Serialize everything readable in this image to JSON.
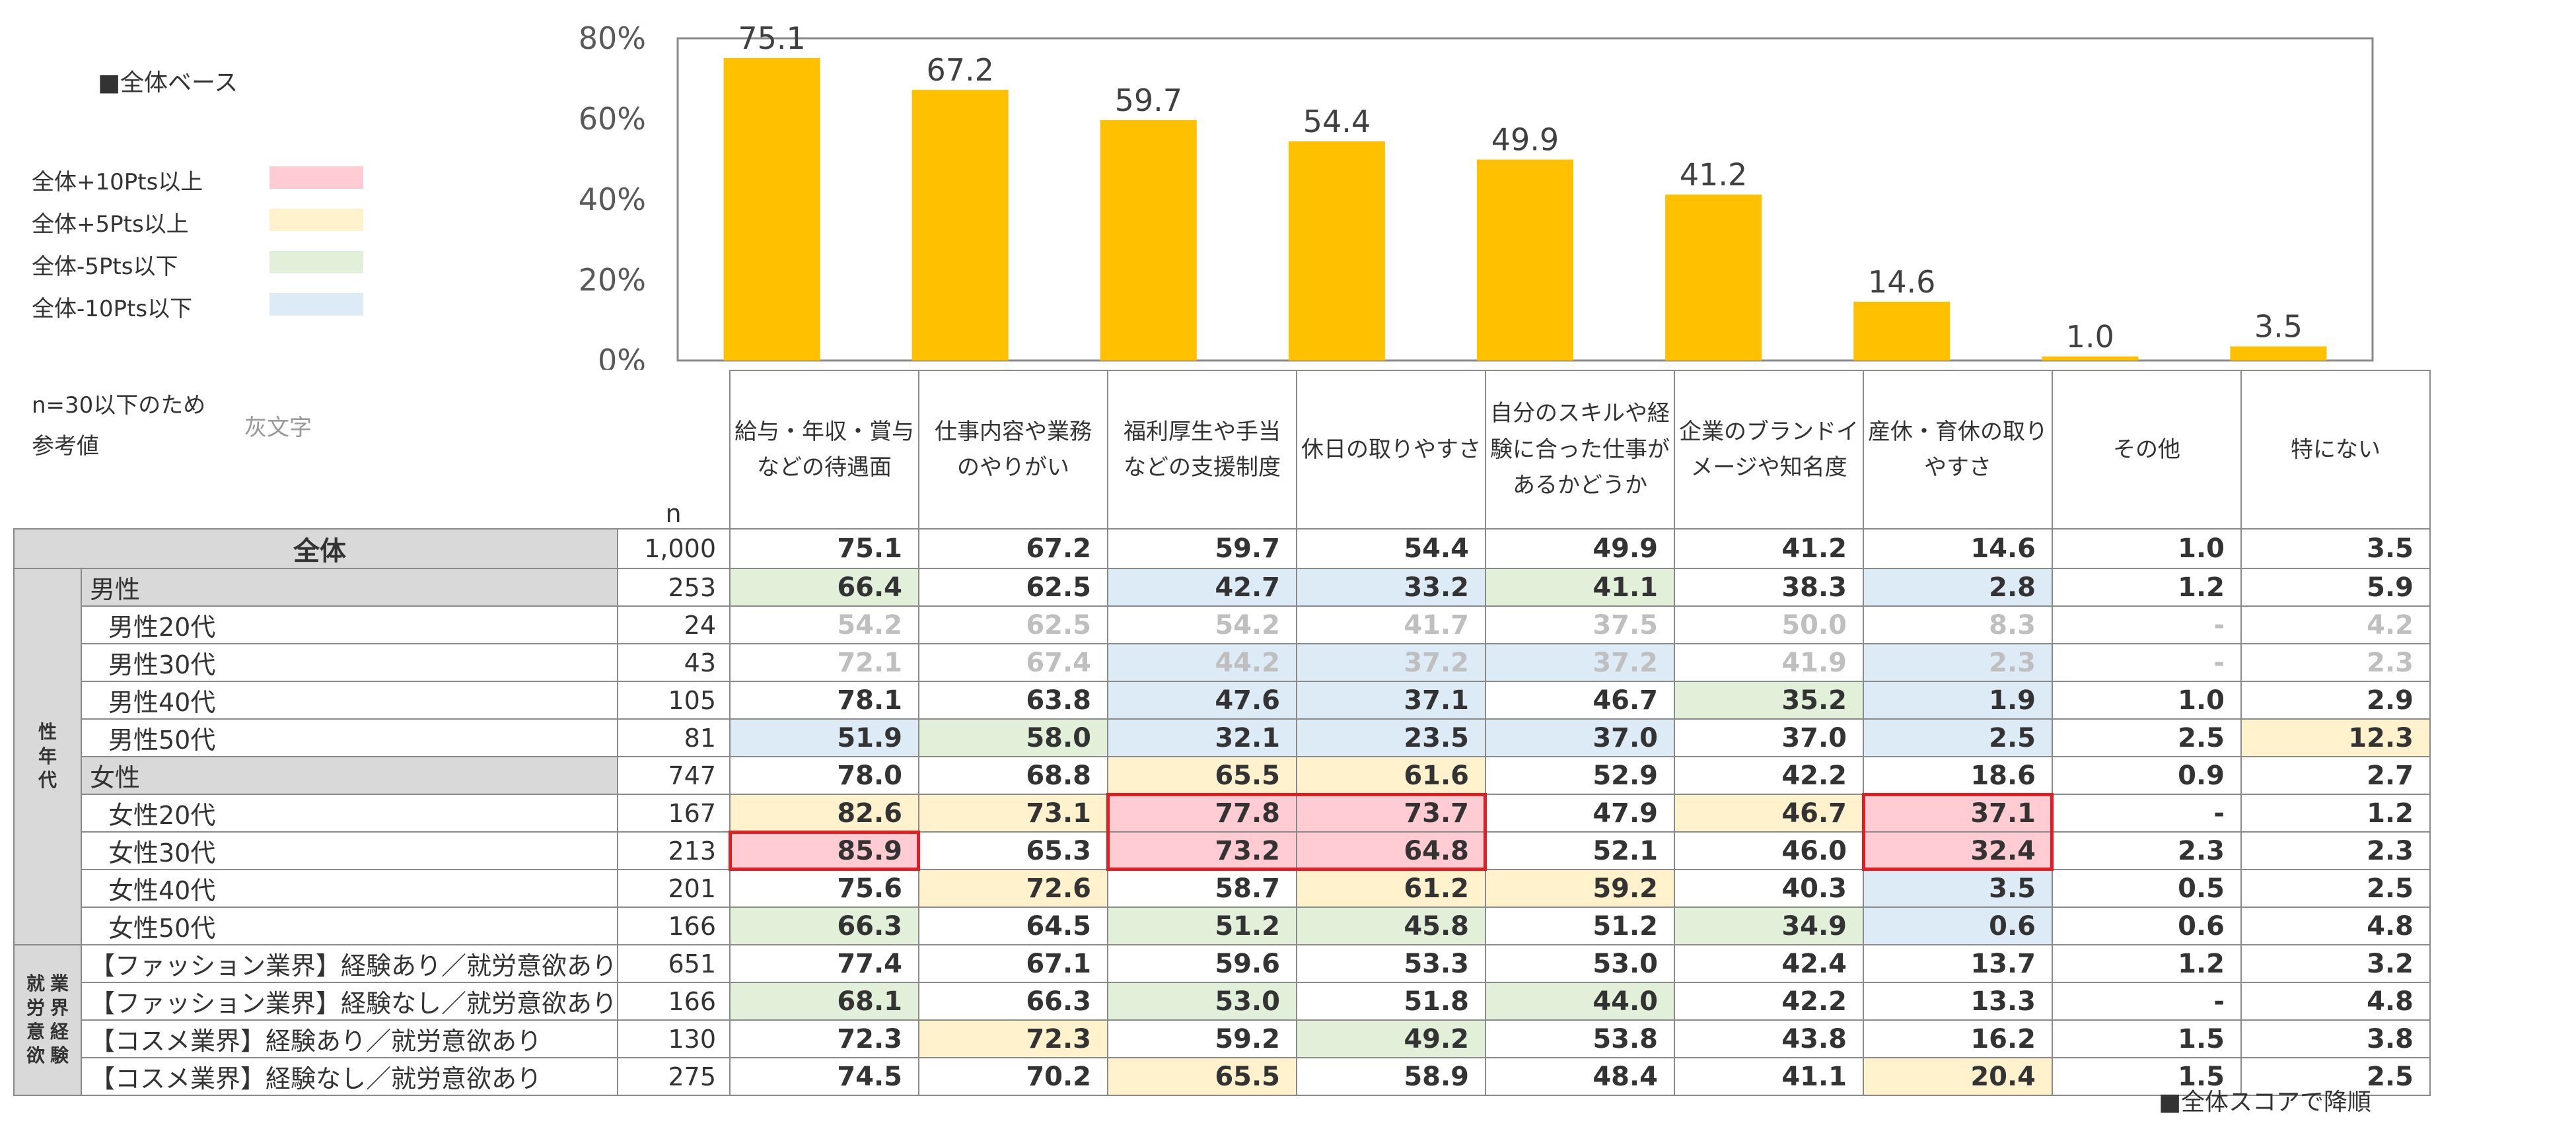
{
  "legend": {
    "base": "■全体ベース",
    "items": [
      {
        "label": "全体+10Pts以上",
        "color": "#ffccd3"
      },
      {
        "label": "全体+5Pts以上",
        "color": "#fff2cc"
      },
      {
        "label": "全体-5Pts以下",
        "color": "#e2efd9"
      },
      {
        "label": "全体-10Pts以下",
        "color": "#ddebf7"
      }
    ],
    "note_line1": "n=30以下のため",
    "note_line2": "参考値",
    "note_gray": "灰文字"
  },
  "chart_data": {
    "type": "bar",
    "categories": [
      "給与・年収・賞与などの待遇面",
      "仕事内容や業務のやりがい",
      "福利厚生や手当などの支援制度",
      "休日の取りやすさ",
      "自分のスキルや経験に合った仕事があるかどうか",
      "企業のブランドイメージや知名度",
      "産休・育休の取りやすさ",
      "その他",
      "特にない"
    ],
    "values": [
      75.1,
      67.2,
      59.7,
      54.4,
      49.9,
      41.2,
      14.6,
      1.0,
      3.5
    ],
    "value_labels": [
      "75.1",
      "67.2",
      "59.7",
      "54.4",
      "49.9",
      "41.2",
      "14.6",
      "1.0",
      "3.5"
    ],
    "yticks": [
      "0%",
      "20%",
      "40%",
      "60%",
      "80%"
    ],
    "ylim": [
      0,
      80
    ],
    "bar_color": "#ffc000"
  },
  "table": {
    "n_header": "n",
    "headers": [
      [
        "給与・年収・賞与",
        "などの待遇面"
      ],
      [
        "仕事内容や業務",
        "のやりがい"
      ],
      [
        "福利厚生や手当",
        "などの支援制度"
      ],
      [
        "休日の取りやすさ"
      ],
      [
        "自分のスキルや経",
        "験に合った仕事が",
        "あるかどうか"
      ],
      [
        "企業のブランドイ",
        "メージや知名度"
      ],
      [
        "産休・育休の取り",
        "やすさ"
      ],
      [
        "その他"
      ],
      [
        "特にない"
      ]
    ],
    "group_gender_age": [
      "性",
      "年",
      "代"
    ],
    "group_work": [
      "就",
      "労",
      "意",
      "欲",
      "業",
      "界",
      "経",
      "験"
    ],
    "rows": [
      {
        "label": "全体",
        "n": "1,000",
        "values": [
          "75.1",
          "67.2",
          "59.7",
          "54.4",
          "49.9",
          "41.2",
          "14.6",
          "1.0",
          "3.5"
        ]
      },
      {
        "label": "男性",
        "n": "253",
        "values": [
          "66.4",
          "62.5",
          "42.7",
          "33.2",
          "41.1",
          "38.3",
          "2.8",
          "1.2",
          "5.9"
        ]
      },
      {
        "label": "男性20代",
        "n": "24",
        "values": [
          "54.2",
          "62.5",
          "54.2",
          "41.7",
          "37.5",
          "50.0",
          "8.3",
          "-",
          "4.2"
        ]
      },
      {
        "label": "男性30代",
        "n": "43",
        "values": [
          "72.1",
          "67.4",
          "44.2",
          "37.2",
          "37.2",
          "41.9",
          "2.3",
          "-",
          "2.3"
        ]
      },
      {
        "label": "男性40代",
        "n": "105",
        "values": [
          "78.1",
          "63.8",
          "47.6",
          "37.1",
          "46.7",
          "35.2",
          "1.9",
          "1.0",
          "2.9"
        ]
      },
      {
        "label": "男性50代",
        "n": "81",
        "values": [
          "51.9",
          "58.0",
          "32.1",
          "23.5",
          "37.0",
          "37.0",
          "2.5",
          "2.5",
          "12.3"
        ]
      },
      {
        "label": "女性",
        "n": "747",
        "values": [
          "78.0",
          "68.8",
          "65.5",
          "61.6",
          "52.9",
          "42.2",
          "18.6",
          "0.9",
          "2.7"
        ]
      },
      {
        "label": "女性20代",
        "n": "167",
        "values": [
          "82.6",
          "73.1",
          "77.8",
          "73.7",
          "47.9",
          "46.7",
          "37.1",
          "-",
          "1.2"
        ]
      },
      {
        "label": "女性30代",
        "n": "213",
        "values": [
          "85.9",
          "65.3",
          "73.2",
          "64.8",
          "52.1",
          "46.0",
          "32.4",
          "2.3",
          "2.3"
        ]
      },
      {
        "label": "女性40代",
        "n": "201",
        "values": [
          "75.6",
          "72.6",
          "58.7",
          "61.2",
          "59.2",
          "40.3",
          "3.5",
          "0.5",
          "2.5"
        ]
      },
      {
        "label": "女性50代",
        "n": "166",
        "values": [
          "66.3",
          "64.5",
          "51.2",
          "45.8",
          "51.2",
          "34.9",
          "0.6",
          "0.6",
          "4.8"
        ]
      },
      {
        "label": "【ファッション業界】経験あり／就労意欲あり",
        "n": "651",
        "values": [
          "77.4",
          "67.1",
          "59.6",
          "53.3",
          "53.0",
          "42.4",
          "13.7",
          "1.2",
          "3.2"
        ]
      },
      {
        "label": "【ファッション業界】経験なし／就労意欲あり",
        "n": "166",
        "values": [
          "68.1",
          "66.3",
          "53.0",
          "51.8",
          "44.0",
          "42.2",
          "13.3",
          "-",
          "4.8"
        ]
      },
      {
        "label": "【コスメ業界】経験あり／就労意欲あり",
        "n": "130",
        "values": [
          "72.3",
          "72.3",
          "59.2",
          "49.2",
          "53.8",
          "43.8",
          "16.2",
          "1.5",
          "3.8"
        ]
      },
      {
        "label": "【コスメ業界】経験なし／就労意欲あり",
        "n": "275",
        "values": [
          "74.5",
          "70.2",
          "65.5",
          "58.9",
          "48.4",
          "41.1",
          "20.4",
          "1.5",
          "2.5"
        ]
      }
    ]
  },
  "footnote": "■全体スコアで降順"
}
